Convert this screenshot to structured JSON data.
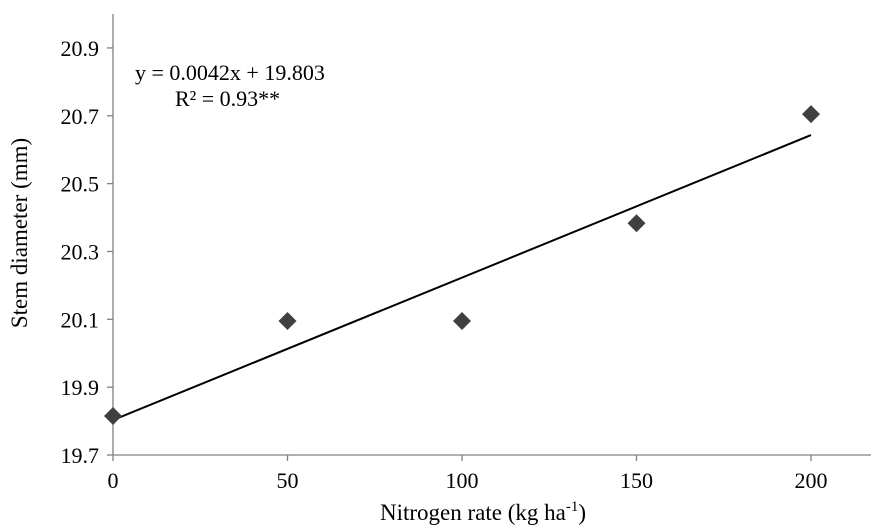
{
  "chart_data": {
    "type": "scatter",
    "xlabel": "Nitrogen rate (kg ha",
    "xlabel_sup": "-1",
    "xlabel_close": ")",
    "ylabel": "Stem diameter (mm)",
    "xlim": [
      0,
      215
    ],
    "ylim": [
      19.7,
      21.0
    ],
    "x_ticks": [
      0,
      50,
      100,
      150,
      200
    ],
    "x_tick_labels": [
      "0",
      "50",
      "100",
      "150",
      "200"
    ],
    "y_ticks": [
      19.7,
      19.9,
      20.1,
      20.3,
      20.5,
      20.7,
      20.9
    ],
    "y_tick_labels": [
      "19.7",
      "19.9",
      "20.1",
      "20.3",
      "20.5",
      "20.7",
      "20.9"
    ],
    "grid": false,
    "series": [
      {
        "marker": "diamond",
        "color": "#404040",
        "x": [
          0,
          50,
          100,
          150,
          200
        ],
        "y": [
          19.815,
          20.095,
          20.095,
          20.383,
          20.705
        ]
      }
    ],
    "trendline": {
      "slope": 0.0042,
      "intercept": 19.803,
      "x_range": [
        0,
        200
      ],
      "color": "#000000"
    },
    "annotations": {
      "equation": "y = 0.0042x + 19.803",
      "r_squared": "R² = 0.93**"
    }
  }
}
